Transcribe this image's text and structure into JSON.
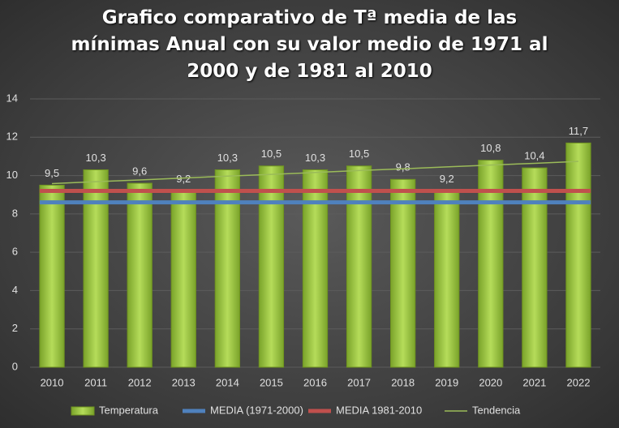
{
  "chart_data": {
    "type": "bar",
    "title": "Grafico comparativo de Tª media de las mínimas Anual con su valor medio de 1971 al 2000 y de 1981 al 2010",
    "categories": [
      "2010",
      "2011",
      "2012",
      "2013",
      "2014",
      "2015",
      "2016",
      "2017",
      "2018",
      "2019",
      "2020",
      "2021",
      "2022"
    ],
    "series": [
      {
        "name": "Temperatura",
        "type": "bar",
        "color": "#9bc53d",
        "values": [
          9.5,
          10.3,
          9.6,
          9.2,
          10.3,
          10.5,
          10.3,
          10.5,
          9.8,
          9.2,
          10.8,
          10.4,
          11.7
        ],
        "value_labels": [
          "9,5",
          "10,3",
          "9,6",
          "9,2",
          "10,3",
          "10,5",
          "10,3",
          "10,5",
          "9,8",
          "9,2",
          "10,8",
          "10,4",
          "11,7"
        ]
      },
      {
        "name": "MEDIA (1971-2000)",
        "type": "line",
        "color": "#4f81bd",
        "values": [
          8.6,
          8.6,
          8.6,
          8.6,
          8.6,
          8.6,
          8.6,
          8.6,
          8.6,
          8.6,
          8.6,
          8.6,
          8.6
        ]
      },
      {
        "name": "MEDIA 1981-2010",
        "type": "line",
        "color": "#c0504d",
        "values": [
          9.2,
          9.2,
          9.2,
          9.2,
          9.2,
          9.2,
          9.2,
          9.2,
          9.2,
          9.2,
          9.2,
          9.2,
          9.2
        ]
      },
      {
        "name": "Tendencia",
        "type": "trend",
        "color": "#9bbb59",
        "values": [
          9.58,
          9.68,
          9.77,
          9.87,
          9.97,
          10.06,
          10.16,
          10.26,
          10.35,
          10.45,
          10.55,
          10.64,
          10.74
        ]
      }
    ],
    "ylim": [
      0,
      14
    ],
    "yticks": [
      0,
      2,
      4,
      6,
      8,
      10,
      12,
      14
    ],
    "grid": true
  }
}
